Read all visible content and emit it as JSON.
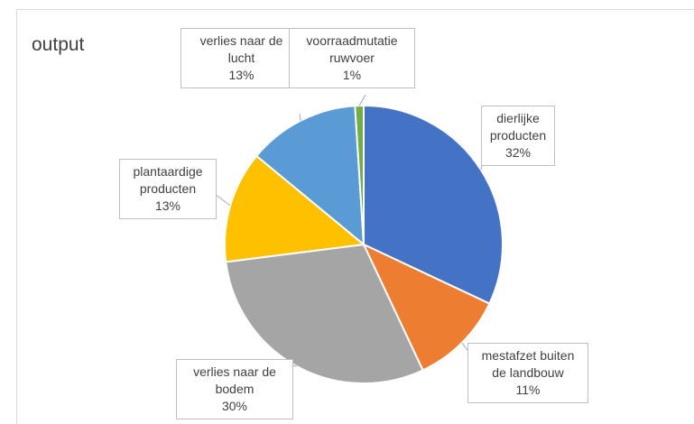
{
  "chart_data": {
    "type": "pie",
    "title": "output",
    "categories": [
      "dierlijke producten",
      "mestafzet buiten de landbouw",
      "verlies naar de bodem",
      "plantaardige producten",
      "verlies naar de lucht",
      "voorraadmutatie ruwvoer"
    ],
    "values": [
      32,
      11,
      30,
      13,
      13,
      1
    ],
    "value_labels": [
      "32%",
      "11%",
      "30%",
      "13%",
      "13%",
      "1%"
    ],
    "colors": [
      "#4472c4",
      "#ed7d31",
      "#a5a5a5",
      "#ffc000",
      "#5b9bd5",
      "#70ad47"
    ]
  }
}
